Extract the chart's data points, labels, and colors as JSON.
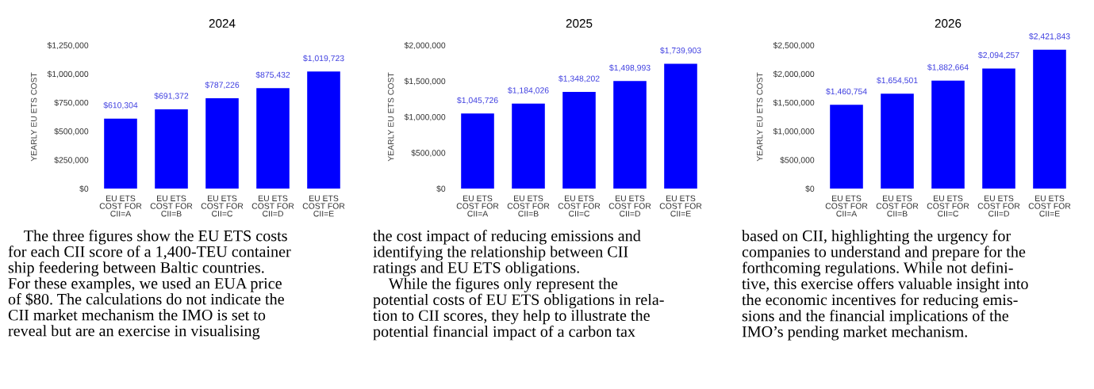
{
  "chart_data": [
    {
      "type": "bar",
      "title": "2024",
      "ylabel": "YEARLY EU ETS COST",
      "categories": [
        "EU ETS\nCOST FOR\nCII=A",
        "EU ETS\nCOST FOR\nCII=B",
        "EU ETS\nCOST FOR\nCII=C",
        "EU ETS\nCOST FOR\nCII=D",
        "EU ETS\nCOST FOR\nCII=E"
      ],
      "values": [
        610304,
        691372,
        787226,
        875432,
        1019723
      ],
      "value_labels": [
        "$610,304",
        "$691,372",
        "$787,226",
        "$875,432",
        "$1,019,723"
      ],
      "color": "#0000ff",
      "ylim": [
        0,
        1250000
      ],
      "yticks": [
        {
          "value": 0,
          "label": "$0"
        },
        {
          "value": 250000,
          "label": "$250,000"
        },
        {
          "value": 500000,
          "label": "$500,000"
        },
        {
          "value": 750000,
          "label": "$750,000"
        },
        {
          "value": 1000000,
          "label": "$1,000,000"
        },
        {
          "value": 1250000,
          "label": "$1,250,000"
        }
      ],
      "grid": false,
      "annotations": [
        "    The three figures show the EU ETS costs\nfor each CII score of a 1,400-TEU container\nship feedering between Baltic countries.\nFor these examples, we used an EUA price\nof $80. The calculations do not indicate the\nCII market mechanism the IMO is set to\nreveal but are an exercise in visualising"
      ]
    },
    {
      "type": "bar",
      "title": "2025",
      "ylabel": "YEARLY EU ETS COST",
      "categories": [
        "EU ETS\nCOST FOR\nCII=A",
        "EU ETS\nCOST FOR\nCII=B",
        "EU ETS\nCOST FOR\nCII=C",
        "EU ETS\nCOST FOR\nCII=D",
        "EU ETS\nCOST FOR\nCII=E"
      ],
      "values": [
        1045726,
        1184026,
        1348202,
        1498993,
        1739903
      ],
      "value_labels": [
        "$1,045,726",
        "$1,184,026",
        "$1,348,202",
        "$1,498,993",
        "$1,739,903"
      ],
      "color": "#0000ff",
      "ylim": [
        0,
        2000000
      ],
      "yticks": [
        {
          "value": 0,
          "label": "$0"
        },
        {
          "value": 500000,
          "label": "$500,000"
        },
        {
          "value": 1000000,
          "label": "$1,000,000"
        },
        {
          "value": 1500000,
          "label": "$1,500,000"
        },
        {
          "value": 2000000,
          "label": "$2,000,000"
        }
      ],
      "grid": false,
      "annotations": [
        "the cost impact of reducing emissions and\nidentifying the relationship between CII\nratings and EU ETS obligations.\n    While the figures only represent the\npotential costs of EU ETS obligations in rela-\ntion to CII scores, they help to illustrate the\npotential financial impact of a carbon tax"
      ]
    },
    {
      "type": "bar",
      "title": "2026",
      "ylabel": "YEARLY EU ETS COST",
      "categories": [
        "EU ETS\nCOST FOR\nCII=A",
        "EU ETS\nCOST FOR\nCII=B",
        "EU ETS\nCOST FOR\nCII=C",
        "EU ETS\nCOST FOR\nCII=D",
        "EU ETS\nCOST FOR\nCII=E"
      ],
      "values": [
        1460754,
        1654501,
        1882664,
        2094257,
        2421843
      ],
      "value_labels": [
        "$1,460,754",
        "$1,654,501",
        "$1,882,664",
        "$2,094,257",
        "$2,421,843"
      ],
      "color": "#0000ff",
      "ylim": [
        0,
        2500000
      ],
      "yticks": [
        {
          "value": 0,
          "label": "$0"
        },
        {
          "value": 500000,
          "label": "$500,000"
        },
        {
          "value": 1000000,
          "label": "$1,000,000"
        },
        {
          "value": 1500000,
          "label": "$1,500,000"
        },
        {
          "value": 2000000,
          "label": "$2,000,000"
        },
        {
          "value": 2500000,
          "label": "$2,500,000"
        }
      ],
      "grid": false,
      "annotations": [
        "based on CII, highlighting the urgency for\ncompanies to understand and prepare for the\nforthcoming regulations. While not defini-\ntive, this exercise offers valuable insight into\nthe economic incentives for reducing emis-\nsions and the financial implications of the\nIMO’s pending market mechanism."
      ]
    }
  ]
}
